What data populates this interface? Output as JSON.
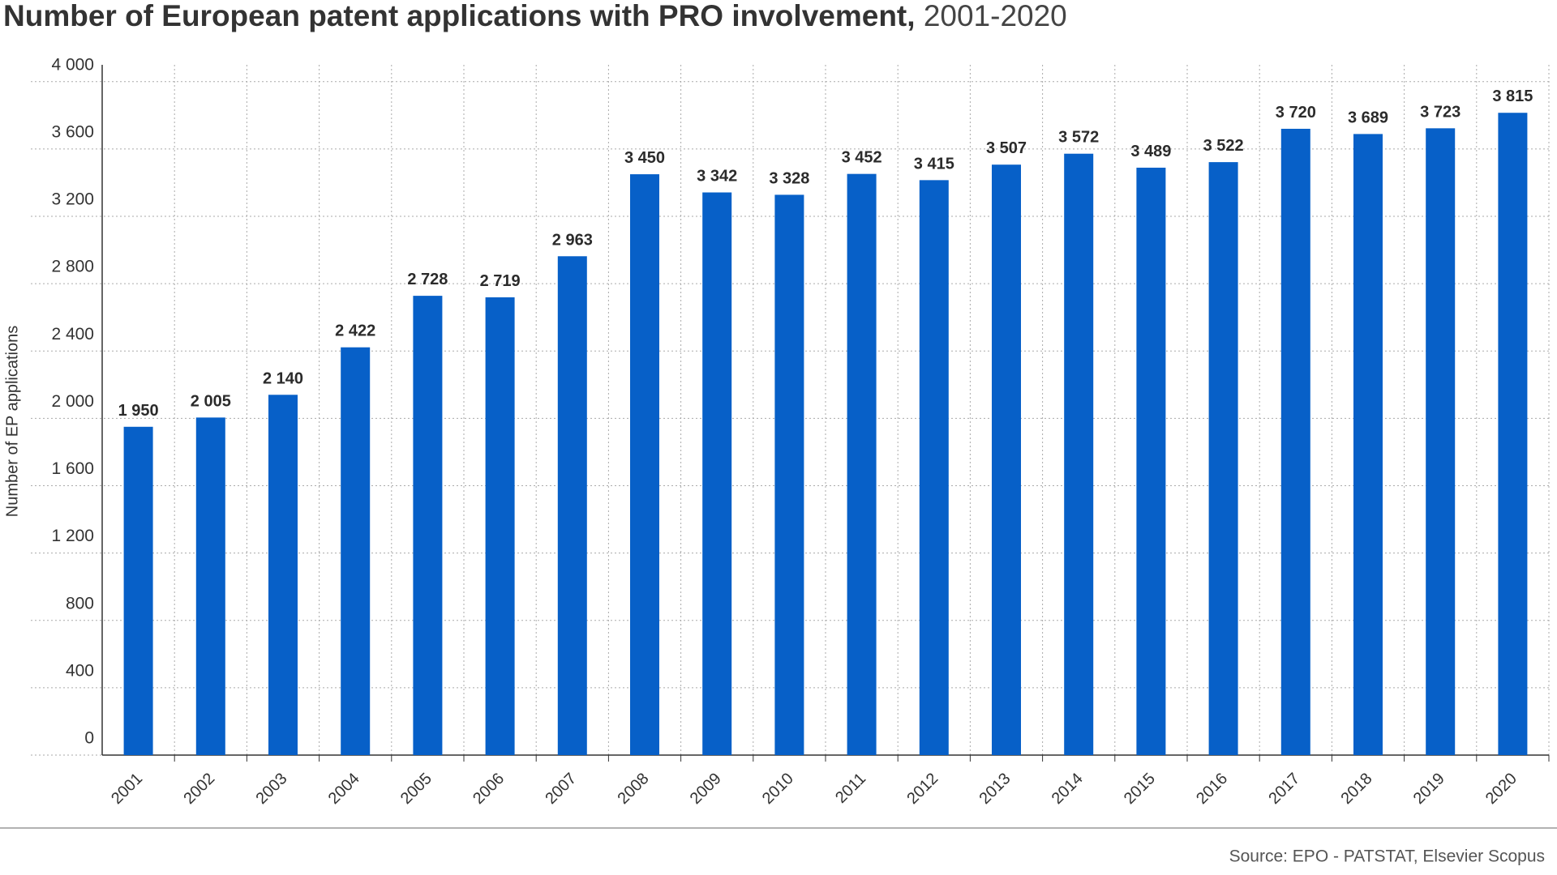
{
  "chart_data": {
    "type": "bar",
    "title": "Number of European patent applications with PRO involvement,",
    "subtitle": "2001-2020",
    "y_label": "Number of EP applications",
    "source": "Source: EPO - PATSTAT, Elsevier Scopus",
    "categories": [
      "2001",
      "2002",
      "2003",
      "2004",
      "2005",
      "2006",
      "2007",
      "2008",
      "2009",
      "2010",
      "2011",
      "2012",
      "2013",
      "2014",
      "2015",
      "2016",
      "2017",
      "2018",
      "2019",
      "2020"
    ],
    "values": [
      1950,
      2005,
      2140,
      2422,
      2728,
      2719,
      2963,
      3450,
      3342,
      3328,
      3452,
      3415,
      3507,
      3572,
      3489,
      3522,
      3720,
      3689,
      3723,
      3815
    ],
    "value_labels": [
      "1 950",
      "2 005",
      "2 140",
      "2 422",
      "2 728",
      "2 719",
      "2 963",
      "3 450",
      "3 342",
      "3 328",
      "3 452",
      "3 415",
      "3 507",
      "3 572",
      "3 489",
      "3 522",
      "3 720",
      "3 689",
      "3 723",
      "3 815"
    ],
    "color": "#0760c8",
    "ylim": [
      0,
      4100
    ],
    "yticks": [
      0,
      400,
      800,
      {
        "value": 1200,
        "label": "1 200"
      },
      {
        "value": 1600,
        "label": "1 600"
      },
      {
        "value": 2000,
        "label": "2 000"
      },
      {
        "value": 2400,
        "label": "2 400"
      },
      {
        "value": 2800,
        "label": "2 800"
      },
      {
        "value": 3200,
        "label": "3 200"
      },
      {
        "value": 3600,
        "label": "3 600"
      },
      {
        "value": 4000,
        "label": "4 000"
      }
    ],
    "grid": true
  }
}
